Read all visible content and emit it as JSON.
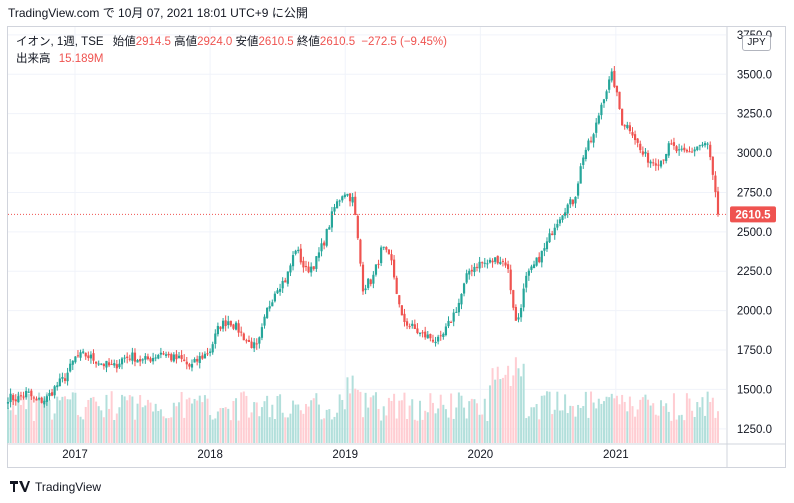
{
  "header": {
    "title": "TradingView.com で 10月 07, 2021 18:01 UTC+9 に公開"
  },
  "legend": {
    "symbol": "イオン, 1週, TSE",
    "open_label": "始値",
    "open": "2914.5",
    "high_label": "高値",
    "high": "2924.0",
    "low_label": "安値",
    "low": "2610.5",
    "close_label": "終値",
    "close": "2610.5",
    "change": "−272.5 (−9.45%)",
    "volume_label": "出来高",
    "volume": "15.189M"
  },
  "currency": "JPY",
  "footer": {
    "brand": "TradingView"
  },
  "colors": {
    "up": "#26a69a",
    "down": "#ef5350",
    "up_volume": "#b2dfdb",
    "down_volume": "#ffcdd2",
    "price_line": "#ef5350"
  },
  "chart_data": {
    "type": "candlestick",
    "interval": "1 week",
    "x_ticks": [
      "2017",
      "2018",
      "2019",
      "2020",
      "2021"
    ],
    "y_ticks": [
      "1250.0",
      "1500.0",
      "1750.0",
      "2000.0",
      "2250.0",
      "2500.0",
      "2750.0",
      "3000.0",
      "3250.0",
      "3500.0",
      "3750.0"
    ],
    "ylim": [
      1160,
      3800
    ],
    "last_price_label": "2610.5",
    "last_price": 2610.5,
    "start_date": "2016-07-04",
    "end_date": "2021-10-04",
    "closes_monthly": [
      1450,
      1440,
      1480,
      1420,
      1440,
      1520,
      1580,
      1700,
      1720,
      1690,
      1660,
      1640,
      1700,
      1710,
      1680,
      1700,
      1740,
      1700,
      1690,
      1640,
      1700,
      1740,
      1900,
      1940,
      1880,
      1800,
      1760,
      2000,
      2150,
      2200,
      2400,
      2250,
      2300,
      2450,
      2650,
      2760,
      2700,
      2150,
      2200,
      2400,
      2300,
      1950,
      1900,
      1850,
      1830,
      1800,
      1920,
      2050,
      2250,
      2300,
      2300,
      2330,
      2300,
      1900,
      2200,
      2300,
      2400,
      2550,
      2650,
      2700,
      3000,
      3100,
      3350,
      3500,
      3200,
      3150,
      3000,
      2950,
      2950,
      3050,
      3000,
      3000,
      3050,
      3050,
      2610.5
    ]
  }
}
